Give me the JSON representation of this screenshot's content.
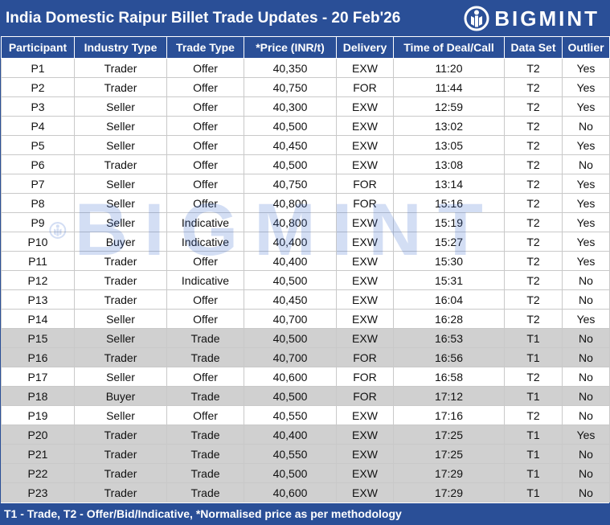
{
  "header": {
    "title": "India Domestic Raipur Billet Trade Updates - 20 Feb'26",
    "logo_text": "BIGMINT",
    "logo_icon": "bigmint-logo-icon"
  },
  "watermark": {
    "text": "BIGMINT"
  },
  "colors": {
    "header_bg": "#2a4f97",
    "t1_row_bg": "#c8c8c8"
  },
  "table": {
    "columns": [
      "Participant",
      "Industry Type",
      "Trade Type",
      "*Price (INR/t)",
      "Delivery",
      "Time of Deal/Call",
      "Data Set",
      "Outlier"
    ],
    "rows": [
      [
        "P1",
        "Trader",
        "Offer",
        "40,350",
        "EXW",
        "11:20",
        "T2",
        "Yes"
      ],
      [
        "P2",
        "Trader",
        "Offer",
        "40,750",
        "FOR",
        "11:44",
        "T2",
        "Yes"
      ],
      [
        "P3",
        "Seller",
        "Offer",
        "40,300",
        "EXW",
        "12:59",
        "T2",
        "Yes"
      ],
      [
        "P4",
        "Seller",
        "Offer",
        "40,500",
        "EXW",
        "13:02",
        "T2",
        "No"
      ],
      [
        "P5",
        "Seller",
        "Offer",
        "40,450",
        "EXW",
        "13:05",
        "T2",
        "Yes"
      ],
      [
        "P6",
        "Trader",
        "Offer",
        "40,500",
        "EXW",
        "13:08",
        "T2",
        "No"
      ],
      [
        "P7",
        "Seller",
        "Offer",
        "40,750",
        "FOR",
        "13:14",
        "T2",
        "Yes"
      ],
      [
        "P8",
        "Seller",
        "Offer",
        "40,800",
        "FOR",
        "15:16",
        "T2",
        "Yes"
      ],
      [
        "P9",
        "Seller",
        "Indicative",
        "40,800",
        "EXW",
        "15:19",
        "T2",
        "Yes"
      ],
      [
        "P10",
        "Buyer",
        "Indicative",
        "40,400",
        "EXW",
        "15:27",
        "T2",
        "Yes"
      ],
      [
        "P11",
        "Trader",
        "Offer",
        "40,400",
        "EXW",
        "15:30",
        "T2",
        "Yes"
      ],
      [
        "P12",
        "Trader",
        "Indicative",
        "40,500",
        "EXW",
        "15:31",
        "T2",
        "No"
      ],
      [
        "P13",
        "Trader",
        "Offer",
        "40,450",
        "EXW",
        "16:04",
        "T2",
        "No"
      ],
      [
        "P14",
        "Seller",
        "Offer",
        "40,700",
        "EXW",
        "16:28",
        "T2",
        "Yes"
      ],
      [
        "P15",
        "Seller",
        "Trade",
        "40,500",
        "EXW",
        "16:53",
        "T1",
        "No"
      ],
      [
        "P16",
        "Trader",
        "Trade",
        "40,700",
        "FOR",
        "16:56",
        "T1",
        "No"
      ],
      [
        "P17",
        "Seller",
        "Offer",
        "40,600",
        "FOR",
        "16:58",
        "T2",
        "No"
      ],
      [
        "P18",
        "Buyer",
        "Trade",
        "40,500",
        "FOR",
        "17:12",
        "T1",
        "No"
      ],
      [
        "P19",
        "Seller",
        "Offer",
        "40,550",
        "EXW",
        "17:16",
        "T2",
        "No"
      ],
      [
        "P20",
        "Trader",
        "Trade",
        "40,400",
        "EXW",
        "17:25",
        "T1",
        "Yes"
      ],
      [
        "P21",
        "Trader",
        "Trade",
        "40,550",
        "EXW",
        "17:25",
        "T1",
        "No"
      ],
      [
        "P22",
        "Trader",
        "Trade",
        "40,500",
        "EXW",
        "17:29",
        "T1",
        "No"
      ],
      [
        "P23",
        "Trader",
        "Trade",
        "40,600",
        "EXW",
        "17:29",
        "T1",
        "No"
      ]
    ]
  },
  "footer": {
    "text": "T1 - Trade, T2 - Offer/Bid/Indicative, *Normalised price as per methodology"
  }
}
